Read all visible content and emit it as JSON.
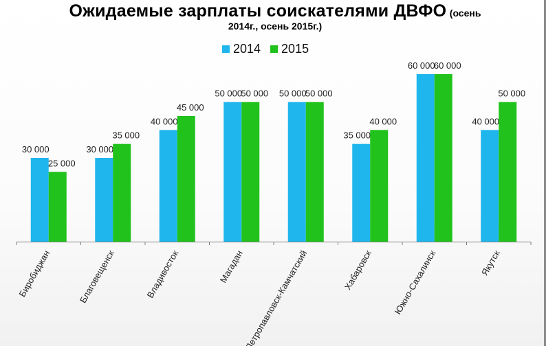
{
  "colors": {
    "s2014": "#1fb6ee",
    "s2015": "#21c21c",
    "axis": "#7f7f7f"
  },
  "title": {
    "main": "Ожидаемые зарплаты соискателями ДВФО",
    "sub_inline": "(осень",
    "line2": "2014г., осень 2015г.)"
  },
  "chart_data": {
    "type": "bar",
    "categories": [
      "Биробиджан",
      "Благовещенск",
      "Владивосток",
      "Магадан",
      "Петропавловск-Камчатский",
      "Хабаровск",
      "Южно-Сахалинск",
      "Якутск"
    ],
    "series": [
      {
        "name": "2014",
        "values": [
          30000,
          30000,
          40000,
          50000,
          50000,
          35000,
          60000,
          40000
        ],
        "labels": [
          "30 000",
          "30 000",
          "40 000",
          "50 000",
          "50 000",
          "35 000",
          "60 000",
          "40 000"
        ]
      },
      {
        "name": "2015",
        "values": [
          25000,
          35000,
          45000,
          50000,
          50000,
          40000,
          60000,
          50000
        ],
        "labels": [
          "25 000",
          "35 000",
          "45 000",
          "50 000",
          "50 000",
          "40 000",
          "60 000",
          "50 000"
        ]
      }
    ],
    "ylim": [
      0,
      60000
    ],
    "grid": false,
    "legend": "top-center"
  }
}
